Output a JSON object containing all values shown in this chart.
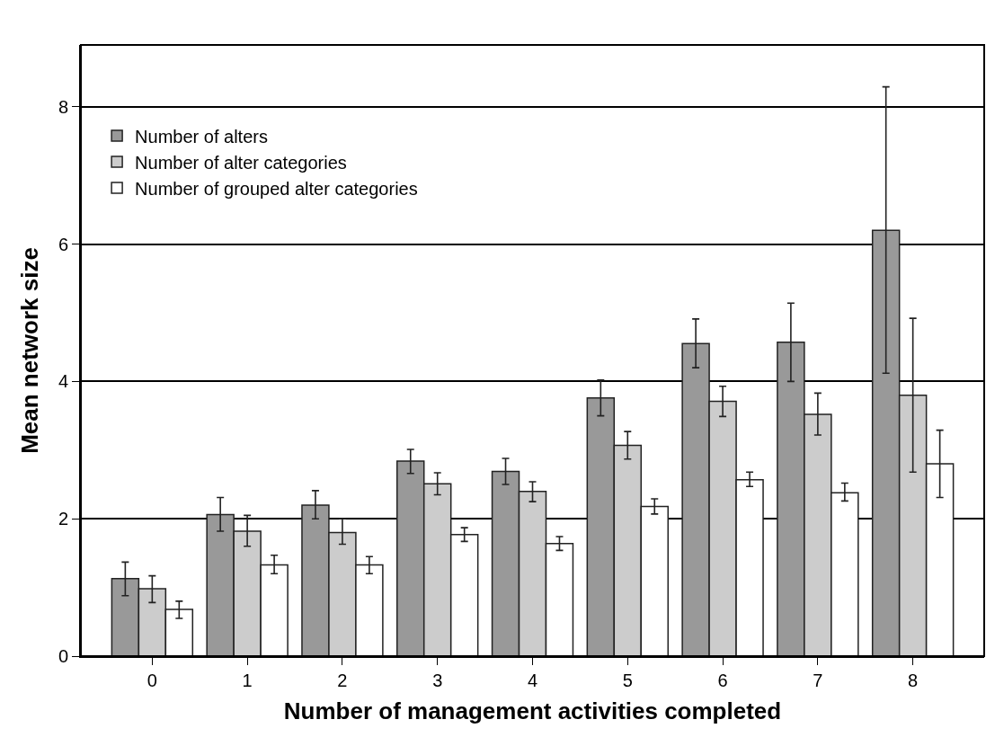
{
  "chart_data": {
    "type": "bar",
    "xlabel": "Number of management activities completed",
    "ylabel": "Mean network size",
    "categories": [
      "0",
      "1",
      "2",
      "3",
      "4",
      "5",
      "6",
      "7",
      "8"
    ],
    "series": [
      {
        "name": "Number of alters",
        "color": "#999999",
        "values": [
          1.13,
          2.06,
          2.2,
          2.84,
          2.69,
          3.76,
          4.55,
          4.57,
          6.2
        ],
        "errors": [
          [
            0.88,
            1.37
          ],
          [
            1.82,
            2.31
          ],
          [
            2.0,
            2.41
          ],
          [
            2.66,
            3.01
          ],
          [
            2.5,
            2.88
          ],
          [
            3.5,
            4.02
          ],
          [
            4.2,
            4.91
          ],
          [
            4.0,
            5.14
          ],
          [
            4.12,
            8.29
          ]
        ]
      },
      {
        "name": "Number of alter categories",
        "color": "#cccccc",
        "values": [
          0.98,
          1.82,
          1.8,
          2.51,
          2.4,
          3.07,
          3.71,
          3.52,
          3.8
        ],
        "errors": [
          [
            0.78,
            1.17
          ],
          [
            1.6,
            2.05
          ],
          [
            1.63,
            2.0
          ],
          [
            2.35,
            2.67
          ],
          [
            2.25,
            2.54
          ],
          [
            2.87,
            3.27
          ],
          [
            3.49,
            3.93
          ],
          [
            3.22,
            3.83
          ],
          [
            2.68,
            4.92
          ]
        ]
      },
      {
        "name": "Number of grouped alter categories",
        "color": "#ffffff",
        "values": [
          0.68,
          1.33,
          1.33,
          1.77,
          1.64,
          2.18,
          2.57,
          2.38,
          2.8
        ],
        "errors": [
          [
            0.55,
            0.8
          ],
          [
            1.2,
            1.47
          ],
          [
            1.2,
            1.45
          ],
          [
            1.67,
            1.87
          ],
          [
            1.54,
            1.74
          ],
          [
            2.07,
            2.29
          ],
          [
            2.47,
            2.68
          ],
          [
            2.26,
            2.52
          ],
          [
            2.31,
            3.29
          ]
        ]
      }
    ],
    "ylim": [
      0,
      8.9
    ],
    "yticks": [
      0,
      2,
      4,
      6,
      8
    ],
    "grid": "y",
    "legend": "top left"
  }
}
